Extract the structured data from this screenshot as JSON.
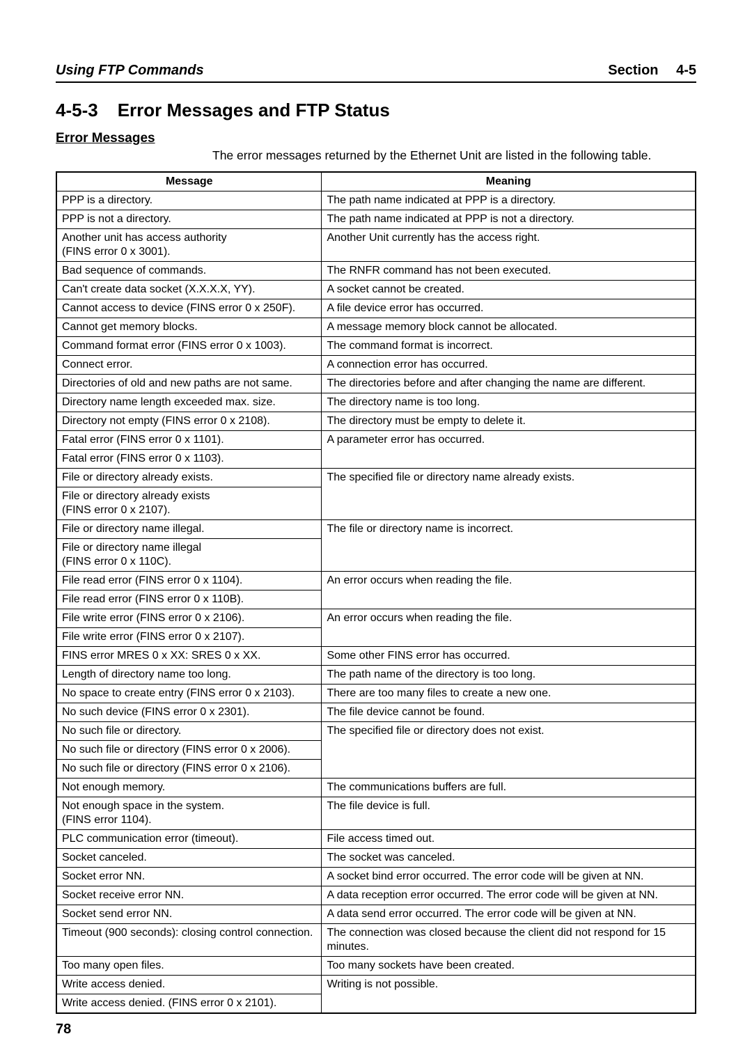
{
  "header": {
    "left": "Using FTP Commands",
    "right_prefix": "Section",
    "right_num": "4-5"
  },
  "section": {
    "number": "4-5-3",
    "title": "Error Messages and FTP Status"
  },
  "subheading": "Error Messages",
  "intro": "The error messages returned by the Ethernet Unit are listed in the following table.",
  "table": {
    "col_message": "Message",
    "col_meaning": "Meaning",
    "rows": [
      {
        "msg": "PPP is a directory.",
        "meaning": "The path name indicated at PPP is a directory."
      },
      {
        "msg": "PPP is not a directory.",
        "meaning": "The path name indicated at PPP is not a directory."
      },
      {
        "msg": "Another unit has access authority\n(FINS error 0 x 3001).",
        "meaning": "Another Unit currently has the access right."
      },
      {
        "msg": "Bad sequence of commands.",
        "meaning": "The RNFR command has not been executed."
      },
      {
        "msg": "Can't create data socket (X.X.X.X, YY).",
        "meaning": "A socket cannot be created."
      },
      {
        "msg": "Cannot access to device (FINS error 0 x 250F).",
        "meaning": "A file device error has occurred."
      },
      {
        "msg": "Cannot get memory blocks.",
        "meaning": "A message memory block cannot be allocated."
      },
      {
        "msg": "Command format error (FINS error 0 x 1003).",
        "meaning": "The command format is incorrect."
      },
      {
        "msg": "Connect error.",
        "meaning": "A connection error has occurred."
      },
      {
        "msg": "Directories of old and new paths are not same.",
        "meaning": "The directories before and after changing the name are different."
      },
      {
        "msg": "Directory name length exceeded max. size.",
        "meaning": "The directory name is too long."
      },
      {
        "msg": "Directory not empty (FINS error 0 x 2108).",
        "meaning": "The directory must be empty to delete it."
      },
      {
        "msg": "Fatal error (FINS error 0 x 1101).",
        "meaning": "A parameter error has occurred."
      },
      {
        "msg": "Fatal error (FINS error 0 x 1103).",
        "meaning": ""
      },
      {
        "msg": "File or directory already exists.",
        "meaning": "The specified file or directory name already exists."
      },
      {
        "msg": "File or directory already exists\n(FINS error 0 x 2107).",
        "meaning": ""
      },
      {
        "msg": "File or directory name illegal.",
        "meaning": "The file or directory name is incorrect."
      },
      {
        "msg": "File or directory name illegal\n(FINS error 0 x 110C).",
        "meaning": ""
      },
      {
        "msg": "File read error (FINS error 0 x 1104).",
        "meaning": "An error occurs when reading the file."
      },
      {
        "msg": "File read error (FINS error 0 x 110B).",
        "meaning": ""
      },
      {
        "msg": "File write error (FINS error 0 x 2106).",
        "meaning": "An error occurs when reading the file."
      },
      {
        "msg": "File write error (FINS error 0 x 2107).",
        "meaning": ""
      },
      {
        "msg": "FINS error MRES 0 x XX: SRES 0 x XX.",
        "meaning": "Some other FINS error has occurred."
      },
      {
        "msg": "Length of directory name too long.",
        "meaning": "The path name of the directory is too long."
      },
      {
        "msg": "No space to create entry (FINS error 0 x 2103).",
        "meaning": "There are too many files to create a new one."
      },
      {
        "msg": "No such device (FINS error 0 x 2301).",
        "meaning": "The file device cannot be found."
      },
      {
        "msg": "No such file or directory.",
        "meaning": "The specified file or directory does not exist."
      },
      {
        "msg": "No such file or directory (FINS error 0 x 2006).",
        "meaning": ""
      },
      {
        "msg": "No such file or directory (FINS error 0 x 2106).",
        "meaning": ""
      },
      {
        "msg": "Not enough memory.",
        "meaning": "The communications buffers are full."
      },
      {
        "msg": "Not enough space in the system.\n(FINS error 1104).",
        "meaning": "The file device is full."
      },
      {
        "msg": "PLC communication error (timeout).",
        "meaning": "File access timed out."
      },
      {
        "msg": "Socket canceled.",
        "meaning": "The socket was canceled."
      },
      {
        "msg": "Socket error NN.",
        "meaning": "A socket bind error occurred. The error code will be given at NN."
      },
      {
        "msg": "Socket receive error NN.",
        "meaning": "A data reception error occurred. The error code will be given at NN."
      },
      {
        "msg": "Socket send error NN.",
        "meaning": "A data send error occurred. The error code will be given at NN."
      },
      {
        "msg": "Timeout (900 seconds): closing control connection.",
        "meaning": "The connection was closed because the client did not respond for 15 minutes."
      },
      {
        "msg": "Too many open files.",
        "meaning": "Too many sockets have been created."
      },
      {
        "msg": "Write access denied.",
        "meaning": "Writing is not possible."
      },
      {
        "msg": "Write access denied. (FINS error 0 x 2101).",
        "meaning": ""
      }
    ],
    "merged_meaning_rows": [
      13,
      15,
      17,
      19,
      21,
      27,
      28,
      39
    ]
  },
  "page_number": "78"
}
